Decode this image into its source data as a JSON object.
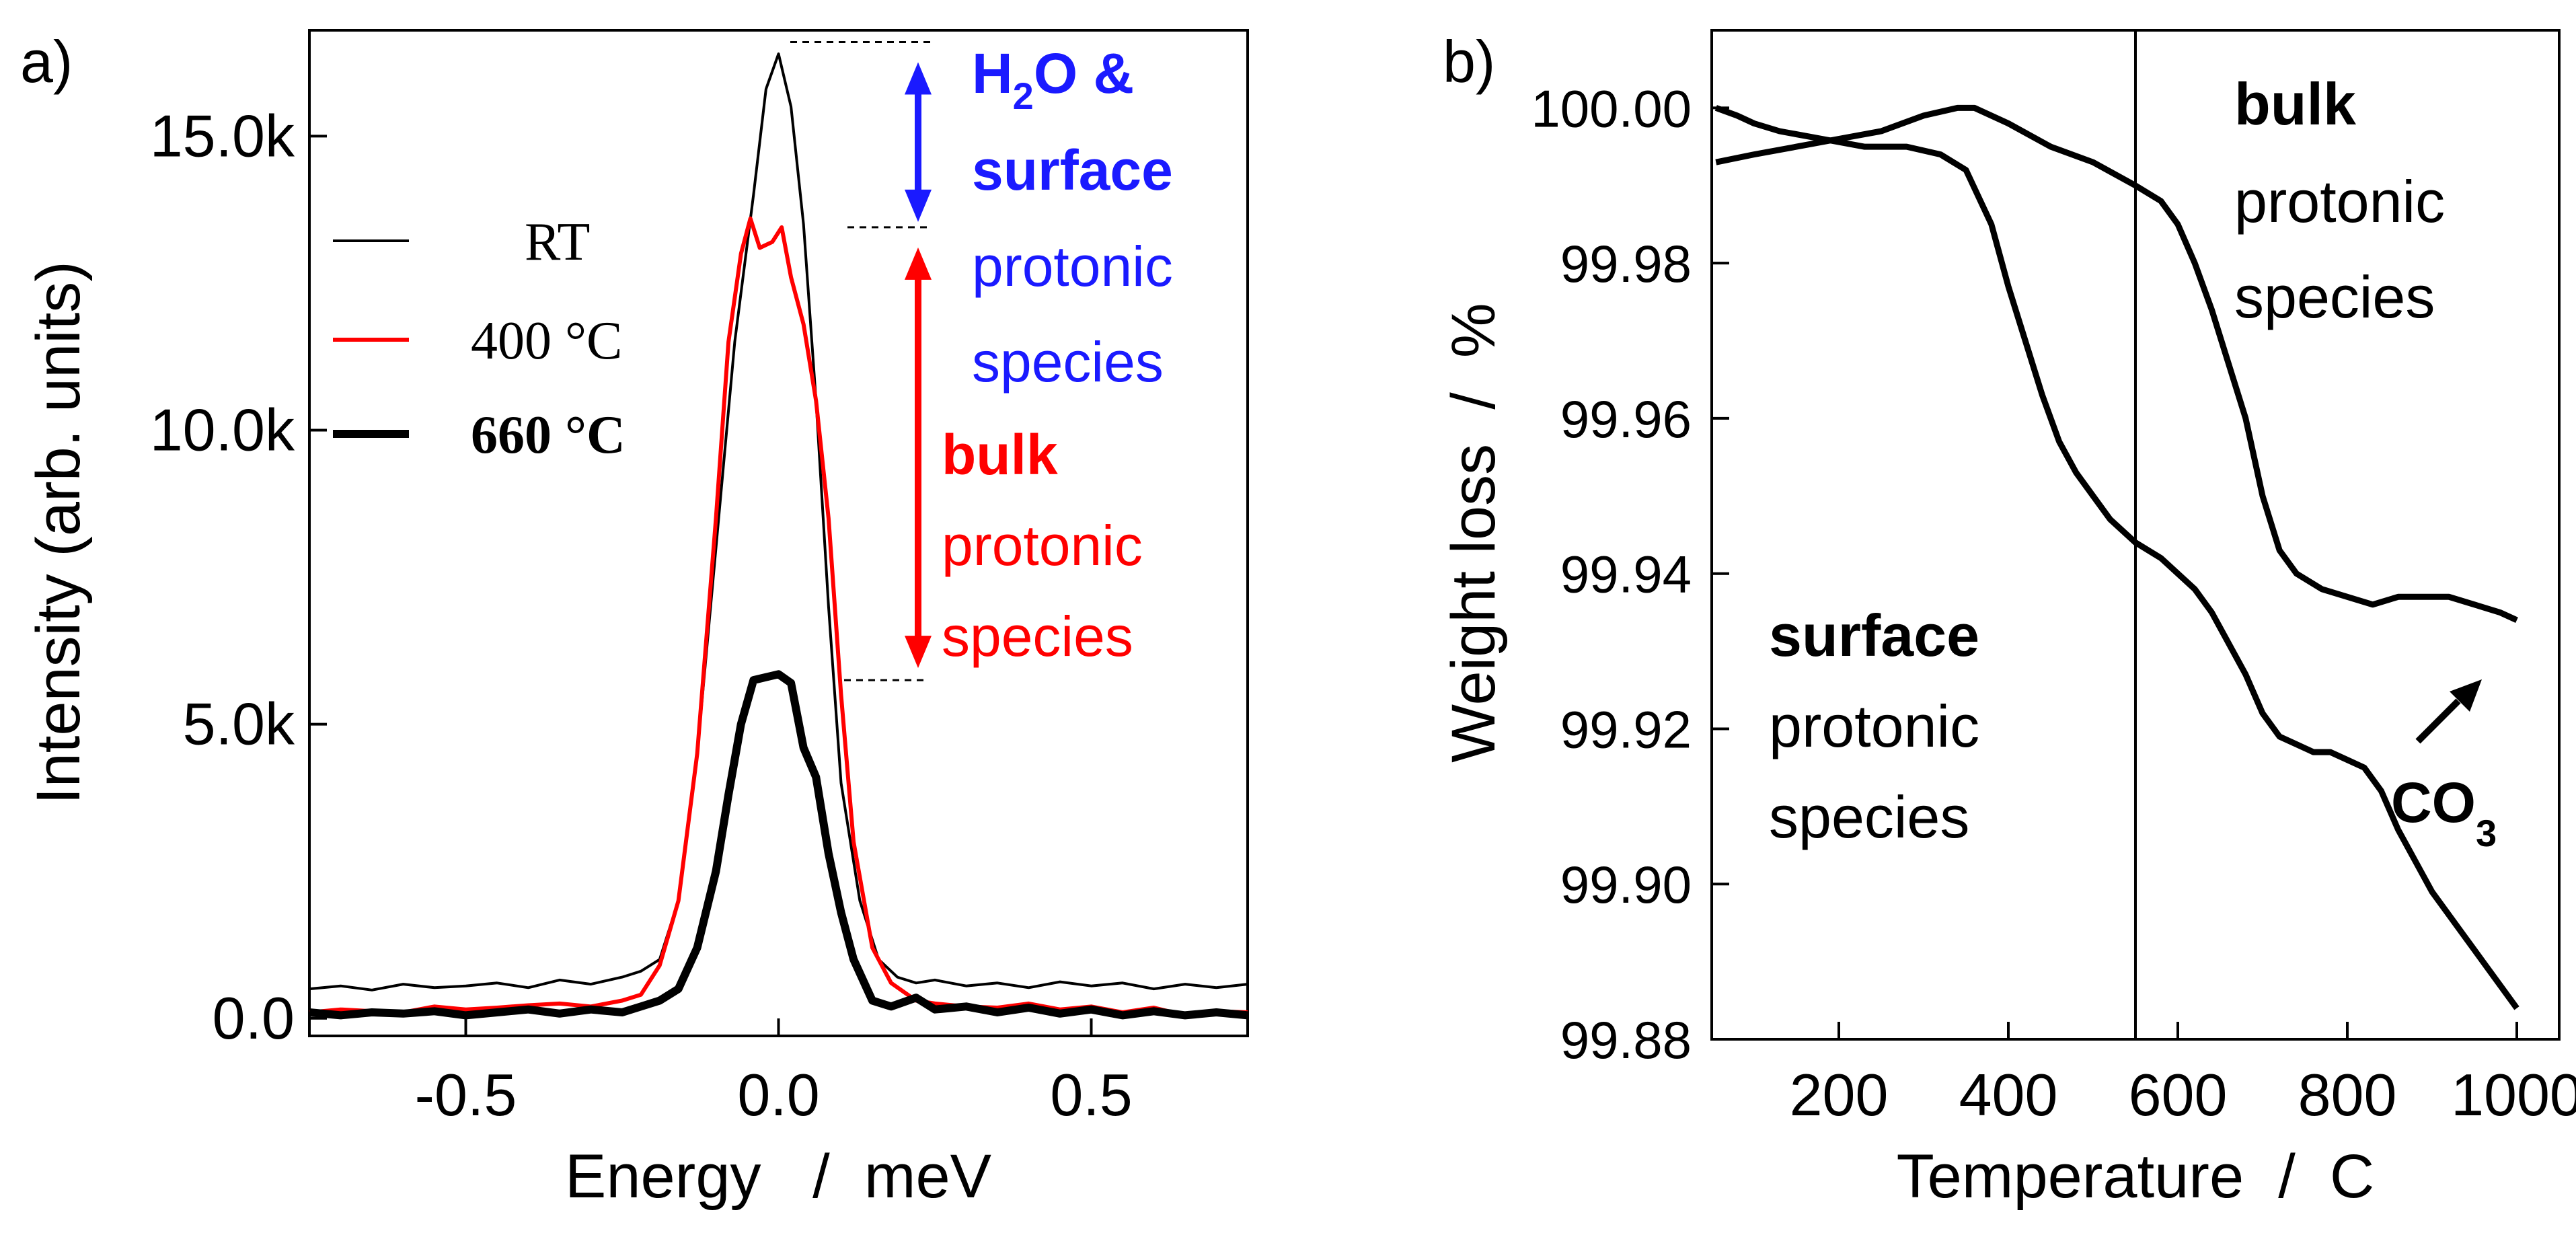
{
  "chart_data": [
    {
      "panel_label": "a)",
      "type": "line",
      "xlabel": "Energy   /  meV",
      "ylabel": "Intensity (arb. units)",
      "xlim": [
        -0.75,
        0.75
      ],
      "ylim": [
        -0.3,
        16.8
      ],
      "x_ticks": [
        -0.5,
        0.0,
        0.5
      ],
      "x_tick_labels": [
        "-0.5",
        "0.0",
        "0.5"
      ],
      "y_ticks": [
        0,
        5,
        10,
        15
      ],
      "y_tick_labels": [
        "0.0",
        "5.0k",
        "10.0k",
        "15.0k"
      ],
      "y_unit": "thousands",
      "legend": {
        "position": "left-middle",
        "entries": [
          "RT",
          "400 °C",
          "660 °C"
        ]
      },
      "series": [
        {
          "name": "RT",
          "color": "#000000",
          "width": "thin",
          "points": [
            [
              -0.75,
              0.5
            ],
            [
              -0.7,
              0.55
            ],
            [
              -0.65,
              0.48
            ],
            [
              -0.6,
              0.58
            ],
            [
              -0.55,
              0.52
            ],
            [
              -0.5,
              0.55
            ],
            [
              -0.45,
              0.6
            ],
            [
              -0.4,
              0.52
            ],
            [
              -0.35,
              0.65
            ],
            [
              -0.3,
              0.58
            ],
            [
              -0.25,
              0.7
            ],
            [
              -0.22,
              0.8
            ],
            [
              -0.19,
              1.0
            ],
            [
              -0.16,
              2.0
            ],
            [
              -0.13,
              4.5
            ],
            [
              -0.1,
              8.0
            ],
            [
              -0.07,
              11.5
            ],
            [
              -0.04,
              14.0
            ],
            [
              -0.02,
              15.8
            ],
            [
              0.0,
              16.4
            ],
            [
              0.02,
              15.5
            ],
            [
              0.04,
              13.5
            ],
            [
              0.06,
              10.5
            ],
            [
              0.08,
              7.0
            ],
            [
              0.1,
              4.0
            ],
            [
              0.13,
              2.0
            ],
            [
              0.16,
              1.0
            ],
            [
              0.19,
              0.7
            ],
            [
              0.22,
              0.6
            ],
            [
              0.25,
              0.65
            ],
            [
              0.3,
              0.55
            ],
            [
              0.35,
              0.6
            ],
            [
              0.4,
              0.52
            ],
            [
              0.45,
              0.62
            ],
            [
              0.5,
              0.55
            ],
            [
              0.55,
              0.6
            ],
            [
              0.6,
              0.5
            ],
            [
              0.65,
              0.58
            ],
            [
              0.7,
              0.52
            ],
            [
              0.75,
              0.58
            ]
          ]
        },
        {
          "name": "400 °C",
          "color": "#ff0000",
          "width": "medium",
          "points": [
            [
              -0.75,
              0.1
            ],
            [
              -0.7,
              0.15
            ],
            [
              -0.65,
              0.12
            ],
            [
              -0.6,
              0.1
            ],
            [
              -0.55,
              0.2
            ],
            [
              -0.5,
              0.15
            ],
            [
              -0.45,
              0.18
            ],
            [
              -0.4,
              0.22
            ],
            [
              -0.35,
              0.25
            ],
            [
              -0.3,
              0.2
            ],
            [
              -0.25,
              0.3
            ],
            [
              -0.22,
              0.4
            ],
            [
              -0.19,
              0.9
            ],
            [
              -0.16,
              2.0
            ],
            [
              -0.13,
              4.5
            ],
            [
              -0.1,
              8.5
            ],
            [
              -0.08,
              11.5
            ],
            [
              -0.06,
              13.0
            ],
            [
              -0.045,
              13.6
            ],
            [
              -0.03,
              13.1
            ],
            [
              -0.01,
              13.2
            ],
            [
              0.005,
              13.45
            ],
            [
              0.02,
              12.6
            ],
            [
              0.04,
              11.8
            ],
            [
              0.06,
              10.5
            ],
            [
              0.08,
              8.5
            ],
            [
              0.1,
              5.5
            ],
            [
              0.12,
              3.0
            ],
            [
              0.15,
              1.2
            ],
            [
              0.18,
              0.6
            ],
            [
              0.22,
              0.3
            ],
            [
              0.25,
              0.25
            ],
            [
              0.3,
              0.2
            ],
            [
              0.35,
              0.18
            ],
            [
              0.4,
              0.25
            ],
            [
              0.45,
              0.15
            ],
            [
              0.5,
              0.2
            ],
            [
              0.55,
              0.1
            ],
            [
              0.6,
              0.18
            ],
            [
              0.65,
              0.05
            ],
            [
              0.7,
              0.12
            ],
            [
              0.75,
              0.1
            ]
          ]
        },
        {
          "name": "660 °C",
          "color": "#000000",
          "width": "thick",
          "points": [
            [
              -0.75,
              0.1
            ],
            [
              -0.7,
              0.05
            ],
            [
              -0.65,
              0.1
            ],
            [
              -0.6,
              0.08
            ],
            [
              -0.55,
              0.12
            ],
            [
              -0.5,
              0.05
            ],
            [
              -0.45,
              0.1
            ],
            [
              -0.4,
              0.15
            ],
            [
              -0.35,
              0.08
            ],
            [
              -0.3,
              0.15
            ],
            [
              -0.25,
              0.1
            ],
            [
              -0.22,
              0.2
            ],
            [
              -0.19,
              0.3
            ],
            [
              -0.16,
              0.5
            ],
            [
              -0.13,
              1.2
            ],
            [
              -0.1,
              2.5
            ],
            [
              -0.08,
              3.8
            ],
            [
              -0.06,
              5.0
            ],
            [
              -0.04,
              5.75
            ],
            [
              -0.02,
              5.8
            ],
            [
              0.0,
              5.85
            ],
            [
              0.02,
              5.7
            ],
            [
              0.04,
              4.6
            ],
            [
              0.06,
              4.1
            ],
            [
              0.08,
              2.8
            ],
            [
              0.1,
              1.8
            ],
            [
              0.12,
              1.0
            ],
            [
              0.15,
              0.3
            ],
            [
              0.18,
              0.2
            ],
            [
              0.22,
              0.35
            ],
            [
              0.25,
              0.15
            ],
            [
              0.3,
              0.2
            ],
            [
              0.35,
              0.1
            ],
            [
              0.4,
              0.18
            ],
            [
              0.45,
              0.08
            ],
            [
              0.5,
              0.15
            ],
            [
              0.55,
              0.05
            ],
            [
              0.6,
              0.12
            ],
            [
              0.65,
              0.05
            ],
            [
              0.7,
              0.1
            ],
            [
              0.75,
              0.05
            ]
          ]
        }
      ],
      "reference_levels": [
        16.6,
        13.45,
        5.75
      ],
      "annotations": {
        "blue_arrow_range": [
          13.45,
          16.6
        ],
        "red_arrow_range": [
          5.75,
          13.45
        ],
        "blue_text": {
          "h": "H",
          "sub": "2",
          "rest": "O &",
          "line2": "surface",
          "line3": "protonic",
          "line4": "species"
        },
        "red_text": {
          "line1": "bulk",
          "line2": "protonic",
          "line3": "species"
        },
        "blue_color": "#1a1aff",
        "red_color": "#ff0000"
      }
    },
    {
      "panel_label": "b)",
      "type": "line",
      "xlabel": "Temperature  /  C",
      "ylabel": "Weight loss  /  %",
      "xlim": [
        50,
        1050
      ],
      "ylim": [
        99.88,
        100.01
      ],
      "x_ticks": [
        200,
        400,
        600,
        800,
        1000
      ],
      "x_tick_labels": [
        "200",
        "400",
        "600",
        "800",
        "1000"
      ],
      "y_ticks": [
        99.88,
        99.9,
        99.92,
        99.94,
        99.96,
        99.98,
        100.0
      ],
      "y_tick_labels": [
        "99.88",
        "99.90",
        "99.92",
        "99.94",
        "99.96",
        "99.98",
        "100.00"
      ],
      "vertical_line_x": 550,
      "series": [
        {
          "name": "surface protonic species (lower curve)",
          "color": "#000000",
          "points": [
            [
              55,
              100.0
            ],
            [
              80,
              99.999
            ],
            [
              100,
              99.998
            ],
            [
              130,
              99.997
            ],
            [
              180,
              99.996
            ],
            [
              230,
              99.995
            ],
            [
              280,
              99.995
            ],
            [
              320,
              99.994
            ],
            [
              350,
              99.992
            ],
            [
              380,
              99.985
            ],
            [
              400,
              99.977
            ],
            [
              420,
              99.97
            ],
            [
              440,
              99.963
            ],
            [
              460,
              99.957
            ],
            [
              480,
              99.953
            ],
            [
              500,
              99.95
            ],
            [
              520,
              99.947
            ],
            [
              550,
              99.944
            ],
            [
              580,
              99.942
            ],
            [
              600,
              99.94
            ],
            [
              620,
              99.938
            ],
            [
              640,
              99.935
            ],
            [
              660,
              99.931
            ],
            [
              680,
              99.927
            ],
            [
              700,
              99.922
            ],
            [
              720,
              99.919
            ],
            [
              740,
              99.918
            ],
            [
              760,
              99.917
            ],
            [
              780,
              99.917
            ],
            [
              800,
              99.916
            ],
            [
              820,
              99.915
            ],
            [
              840,
              99.912
            ],
            [
              860,
              99.907
            ],
            [
              880,
              99.903
            ],
            [
              900,
              99.899
            ],
            [
              920,
              99.896
            ],
            [
              940,
              99.893
            ],
            [
              960,
              99.89
            ],
            [
              980,
              99.887
            ],
            [
              1000,
              99.884
            ]
          ]
        },
        {
          "name": "bulk protonic species (upper curve)",
          "color": "#000000",
          "points": [
            [
              55,
              99.993
            ],
            [
              100,
              99.994
            ],
            [
              150,
              99.995
            ],
            [
              200,
              99.996
            ],
            [
              250,
              99.997
            ],
            [
              300,
              99.999
            ],
            [
              340,
              100.0
            ],
            [
              360,
              100.0
            ],
            [
              400,
              99.998
            ],
            [
              450,
              99.995
            ],
            [
              500,
              99.993
            ],
            [
              550,
              99.99
            ],
            [
              580,
              99.988
            ],
            [
              600,
              99.985
            ],
            [
              620,
              99.98
            ],
            [
              640,
              99.974
            ],
            [
              660,
              99.967
            ],
            [
              680,
              99.96
            ],
            [
              700,
              99.95
            ],
            [
              720,
              99.943
            ],
            [
              740,
              99.94
            ],
            [
              770,
              99.938
            ],
            [
              800,
              99.937
            ],
            [
              830,
              99.936
            ],
            [
              860,
              99.937
            ],
            [
              890,
              99.937
            ],
            [
              920,
              99.937
            ],
            [
              950,
              99.936
            ],
            [
              980,
              99.935
            ],
            [
              1000,
              99.934
            ]
          ]
        }
      ],
      "annotations": {
        "bulk_text": [
          "bulk",
          "protonic",
          "species"
        ],
        "surface_text": [
          "surface",
          "protonic",
          "species"
        ],
        "co3_text": {
          "main": "CO",
          "sub": "3"
        }
      }
    }
  ]
}
